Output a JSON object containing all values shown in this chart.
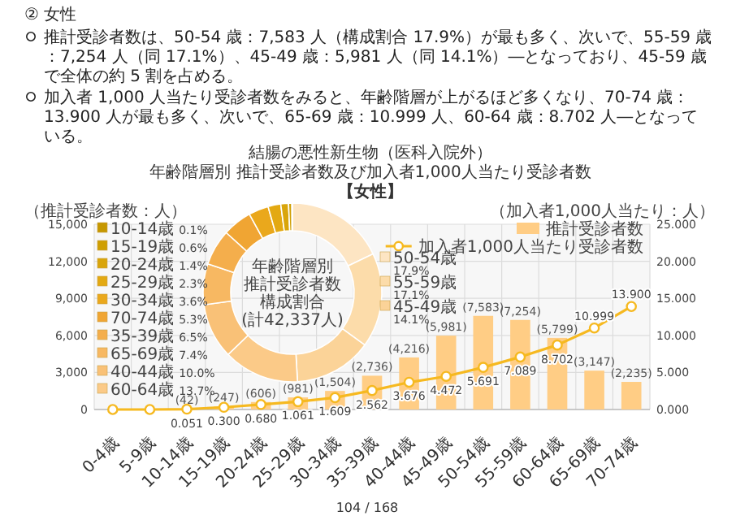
{
  "chart_data": [
    {
      "type": "bar",
      "title": "結腸の悪性新生物（医科入院外）",
      "subtitle": "年齢階層別 推計受診者数及び加入者1,000人当たり受診者数",
      "annotations": [
        "② 女性",
        "推計受診者数は、50-54 歳：7,583 人（構成割合 17.9%）が最も多く、次いで、55-59 歳：7,254 人（同 17.1%）、45-49 歳：5,981 人（同 14.1%）―となっており、45-59 歳で全体の約 5 割を占める。",
        "加入者 1,000 人当たり受診者数をみると、年齢階層が上がるほど多くなり、70-74 歳：13.900 人が最も多く、次いで、65-69 歳：10.999 人、60-64 歳：8.702 人―となっている。",
        "【女性】",
        "104 / 168"
      ],
      "ylabel": "（推計受診者数：人）",
      "y2label": "（加入者1,000人当たり：人）",
      "categories": [
        "0-4歳",
        "5-9歳",
        "10-14歳",
        "15-19歳",
        "20-24歳",
        "25-29歳",
        "30-34歳",
        "35-39歳",
        "40-44歳",
        "45-49歳",
        "50-54歳",
        "55-59歳",
        "60-64歳",
        "65-69歳",
        "70-74歳"
      ],
      "series": [
        {
          "name": "推計受診者数",
          "type": "bar",
          "color": "#ffcd85",
          "values": [
            0,
            0,
            42,
            247,
            606,
            981,
            1504,
            2736,
            4216,
            5981,
            7583,
            7254,
            5799,
            3147,
            2235
          ],
          "value_labels": [
            null,
            null,
            "(42)",
            "(247)",
            "(606)",
            "(981)",
            "(1,504)",
            "(2,736)",
            "(4,216)",
            "(5,981)",
            "(7,583)",
            "(7,254)",
            "(5,799)",
            "(3,147)",
            "(2,235)"
          ]
        },
        {
          "name": "加入者1,000人当たり受診者数",
          "type": "line",
          "axis": "y2",
          "color": "#f6b920",
          "values": [
            0,
            0,
            0.051,
            0.3,
            0.68,
            1.061,
            1.609,
            2.562,
            3.676,
            4.472,
            5.691,
            7.089,
            8.702,
            10.999,
            13.9
          ],
          "value_labels": [
            null,
            null,
            "0.051",
            "0.300",
            "0.680",
            "1.061",
            "1.609",
            "2.562",
            "3.676",
            "4.472",
            "5.691",
            "7.089",
            "8.702",
            "10.999",
            "13.900"
          ]
        }
      ],
      "ylim": [
        0,
        15000
      ],
      "yticks": [
        0,
        {
          "value": 3000,
          "label": "3,000"
        },
        {
          "value": 6000,
          "label": "6,000"
        },
        {
          "value": 9000,
          "label": "9,000"
        },
        {
          "value": 12000,
          "label": "12,000"
        },
        {
          "value": 15000,
          "label": "15,000"
        }
      ],
      "y2lim": [
        0,
        25
      ],
      "y2ticks": [
        {
          "value": 0,
          "label": "0.000"
        },
        {
          "value": 5,
          "label": "5.000"
        },
        {
          "value": 10,
          "label": "10.000"
        },
        {
          "value": 15,
          "label": "15.000"
        },
        {
          "value": 20,
          "label": "20.000"
        },
        {
          "value": 25,
          "label": "25.000"
        }
      ],
      "grid": true,
      "legend": "top right",
      "marker": "circle"
    },
    {
      "type": "donut",
      "annotations": [
        "年齢階層別",
        "推計受診者数",
        "構成割合",
        "(計42,337人)"
      ],
      "categories": [
        "50-54歳",
        "55-59歳",
        "45-49歳",
        "60-64歳",
        "40-44歳",
        "65-69歳",
        "35-39歳",
        "70-74歳",
        "30-34歳",
        "25-29歳",
        "20-24歳",
        "15-19歳",
        "10-14歳"
      ],
      "values": [
        17.9,
        17.1,
        14.1,
        13.7,
        10.0,
        7.4,
        6.5,
        5.3,
        3.6,
        2.3,
        1.4,
        0.6,
        0.1
      ],
      "value_labels": [
        "17.9%",
        "17.1%",
        "14.1%",
        "13.7%",
        "10.0%",
        "7.4%",
        "6.5%",
        "5.3%",
        "3.6%",
        "2.3%",
        "1.4%",
        "0.6%",
        "0.1%"
      ],
      "legend": "left",
      "colors": [
        "#fde5c3",
        "#fcdcaa",
        "#fbd398",
        "#fbca88",
        "#f9c177",
        "#f7b862",
        "#f4ae4c",
        "#f0a533",
        "#eaa81c",
        "#e3a912",
        "#d9a50a",
        "#cf9f02",
        "#c69800"
      ]
    }
  ]
}
